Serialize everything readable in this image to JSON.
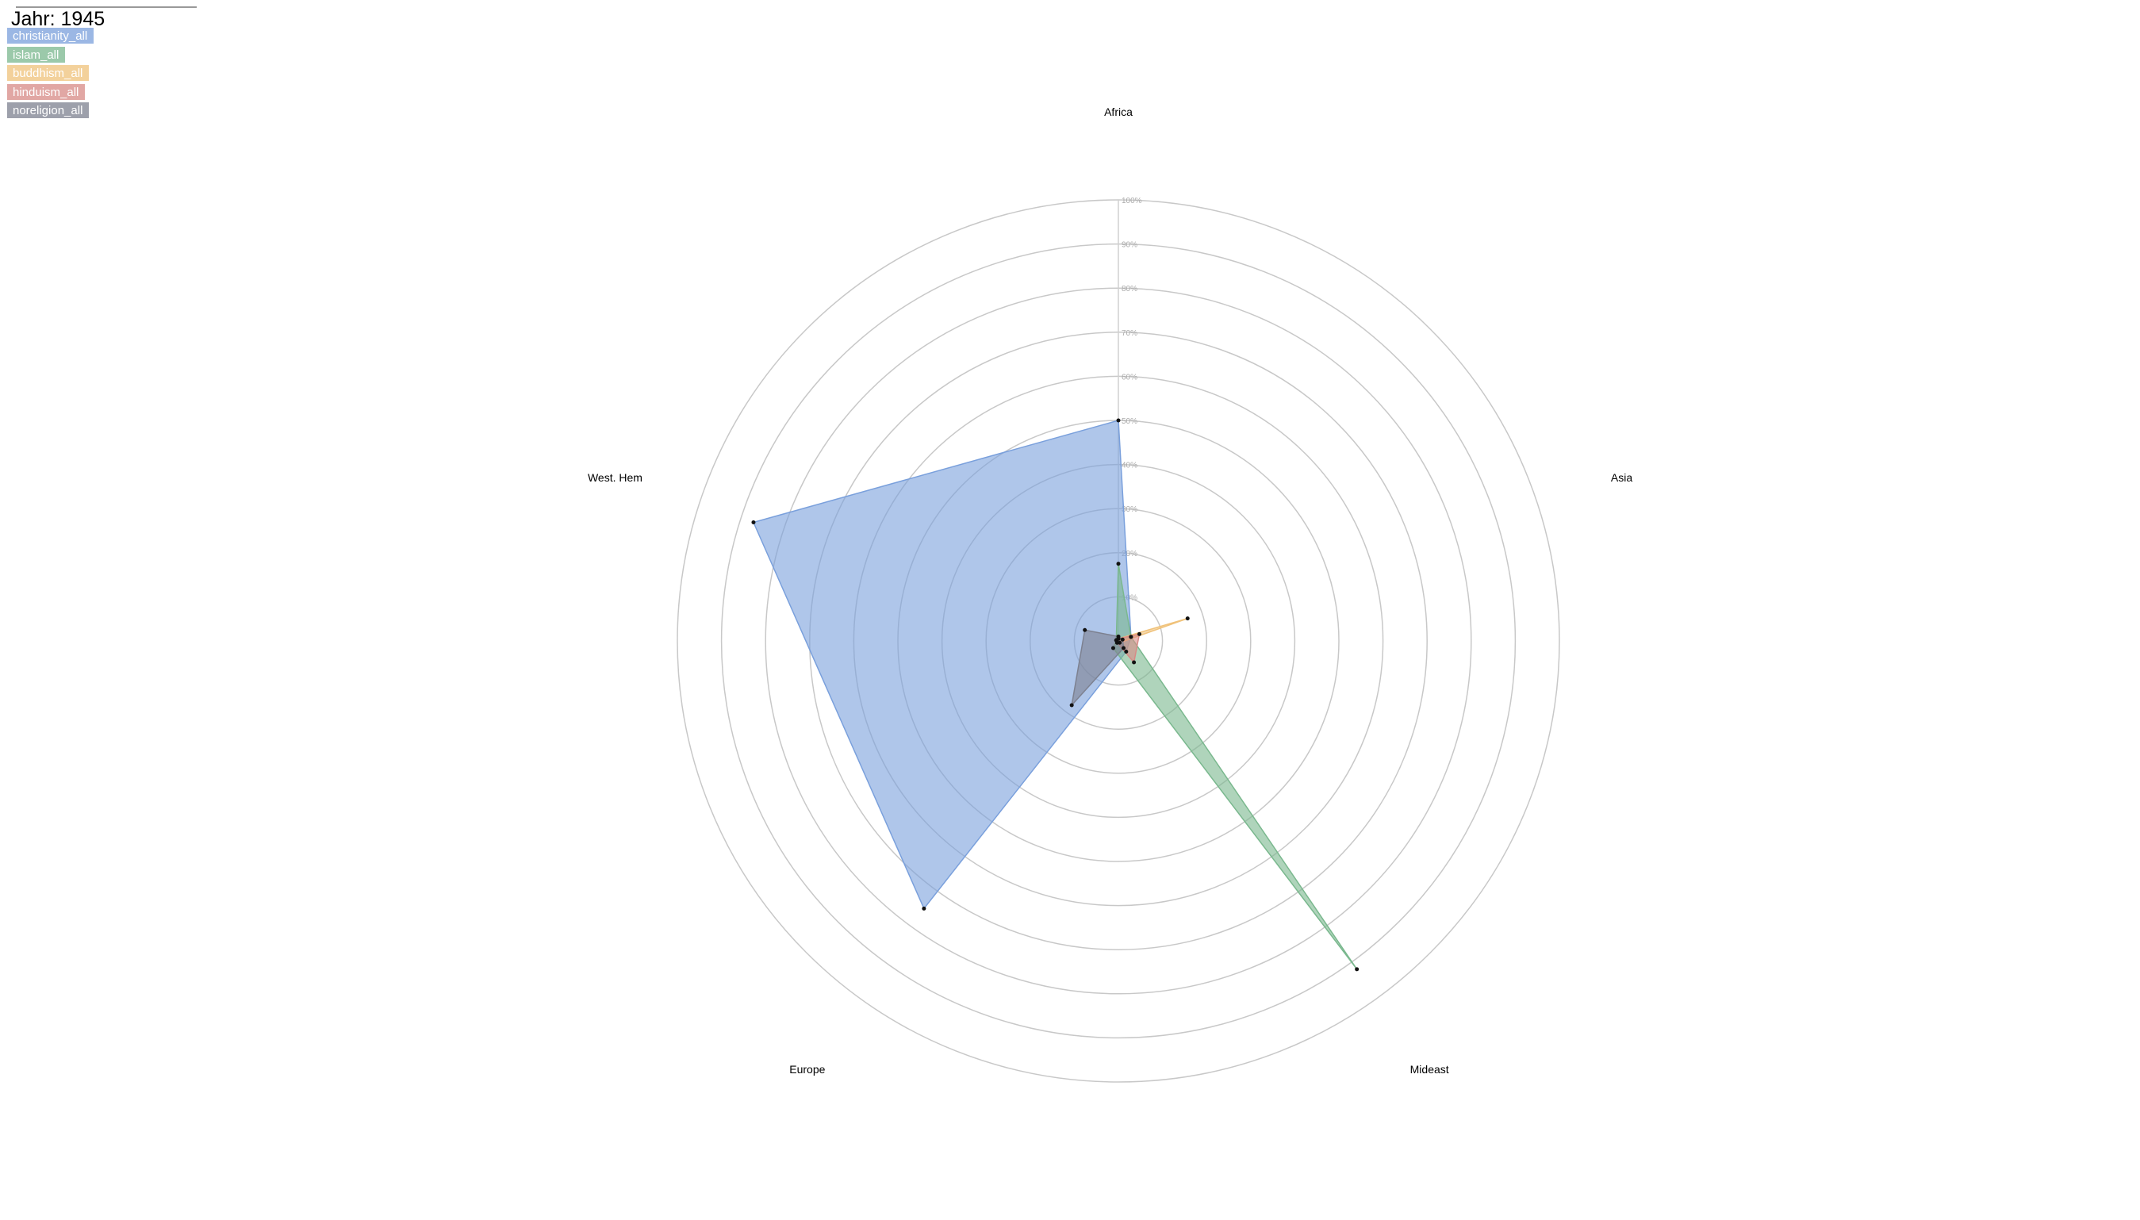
{
  "chart_data": {
    "type": "radar",
    "title": "Jahr: 1945",
    "categories": [
      "Africa",
      "Asia",
      "Mideast",
      "Europe",
      "West. Hem"
    ],
    "rlim": [
      0,
      100
    ],
    "rticks": [
      {
        "value": 10,
        "label": "10%"
      },
      {
        "value": 20,
        "label": "20%"
      },
      {
        "value": 30,
        "label": "30%"
      },
      {
        "value": 40,
        "label": "40%"
      },
      {
        "value": 50,
        "label": "50%"
      },
      {
        "value": 60,
        "label": "60%"
      },
      {
        "value": 70,
        "label": "70%"
      },
      {
        "value": 80,
        "label": "80%"
      },
      {
        "value": 90,
        "label": "90%"
      },
      {
        "value": 100,
        "label": "100%"
      }
    ],
    "series": [
      {
        "name": "christianity_all",
        "color": "#7aa0dc",
        "values": [
          50,
          3,
          3,
          75,
          87
        ]
      },
      {
        "name": "islam_all",
        "color": "#7ab88e",
        "values": [
          17.5,
          3,
          92,
          2,
          0.5
        ]
      },
      {
        "name": "buddhism_all",
        "color": "#f0c27a",
        "values": [
          0.5,
          16.5,
          0.5,
          0.5,
          0.5
        ]
      },
      {
        "name": "hinduism_all",
        "color": "#d88a86",
        "values": [
          0.5,
          5,
          6,
          0.5,
          0.5
        ]
      },
      {
        "name": "noreligion_all",
        "color": "#7d8190",
        "values": [
          1,
          1,
          2,
          18,
          8
        ]
      }
    ]
  }
}
